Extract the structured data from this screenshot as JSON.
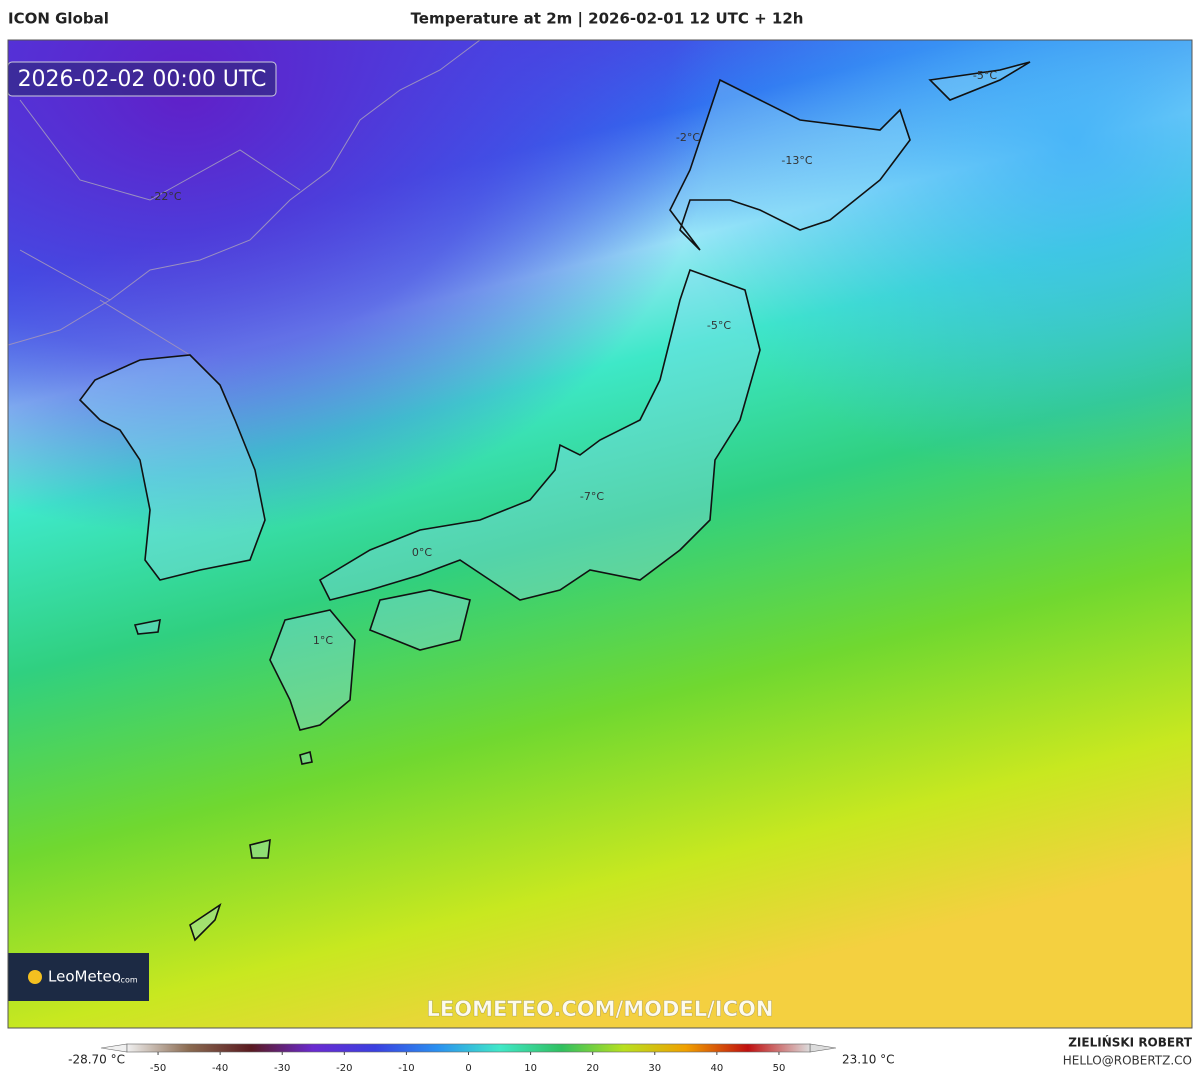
{
  "header": {
    "model": "ICON Global",
    "title": "Temperature at 2m | 2026-02-01 12 UTC + 12h",
    "valid_time": "2026-02-02 00:00 UTC"
  },
  "map_labels": [
    "-5°C",
    "-2°C",
    "-13°C",
    "-22°C",
    "-5°C",
    "-7°C",
    "0°C",
    "1°C"
  ],
  "logo": {
    "name": "LeoMeteo",
    "suffix": ".com"
  },
  "watermark": "LEOMETEO.COM/MODEL/ICON",
  "author": {
    "name": "ZIELIŃSKI ROBERT",
    "email": "HELLO@ROBERTZ.CO"
  },
  "colorbar": {
    "min_label": "-28.70 °C",
    "max_label": "23.10 °C",
    "range": [
      -55,
      55
    ],
    "ticks": [
      -50,
      -40,
      -30,
      -20,
      -10,
      0,
      10,
      20,
      30,
      40,
      50
    ],
    "colors": [
      "#f0f0f0",
      "#8a6a50",
      "#5a1a20",
      "#6a2ad0",
      "#3a40e0",
      "#2a90f0",
      "#40e8c8",
      "#30c060",
      "#b8e020",
      "#f0a000",
      "#c01010",
      "#dcdcdc"
    ]
  }
}
